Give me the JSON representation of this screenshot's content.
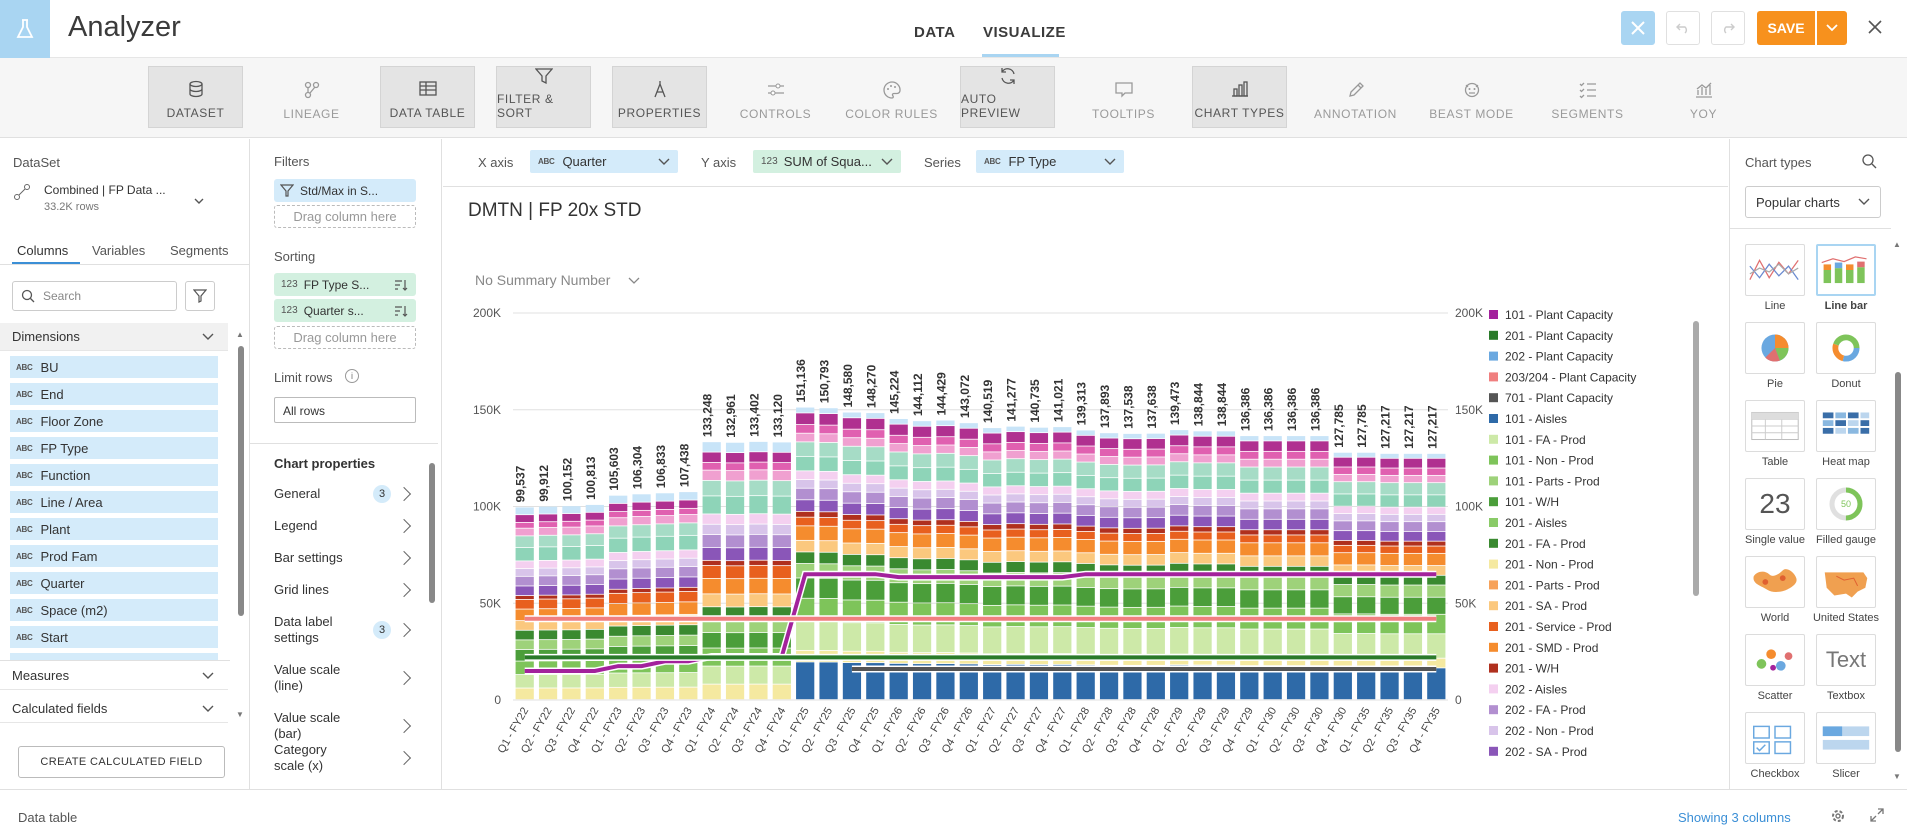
{
  "header": {
    "title": "Analyzer",
    "tabs": [
      "DATA",
      "VISUALIZE"
    ],
    "save_label": "SAVE"
  },
  "toolbar": [
    {
      "label": "DATASET",
      "icon": "database-icon",
      "active": true
    },
    {
      "label": "LINEAGE",
      "icon": "lineage-icon",
      "active": false
    },
    {
      "label": "DATA TABLE",
      "icon": "table-icon",
      "active": true
    },
    {
      "label": "FILTER & SORT",
      "icon": "filter-icon",
      "active": true
    },
    {
      "label": "PROPERTIES",
      "icon": "compass-icon",
      "active": true
    },
    {
      "label": "CONTROLS",
      "icon": "sliders-icon",
      "active": false
    },
    {
      "label": "COLOR RULES",
      "icon": "palette-icon",
      "active": false
    },
    {
      "label": "AUTO PREVIEW",
      "icon": "refresh-icon",
      "active": true
    },
    {
      "label": "TOOLTIPS",
      "icon": "tooltip-icon",
      "active": false
    },
    {
      "label": "CHART TYPES",
      "icon": "bar-chart-icon",
      "active": true
    },
    {
      "label": "ANNOTATION",
      "icon": "pencil-icon",
      "active": false
    },
    {
      "label": "BEAST MODE",
      "icon": "beast-icon",
      "active": false
    },
    {
      "label": "SEGMENTS",
      "icon": "segments-icon",
      "active": false
    },
    {
      "label": "YOY",
      "icon": "yoy-icon",
      "active": false
    }
  ],
  "dataset": {
    "heading": "DataSet",
    "name": "Combined | FP Data ...",
    "rows": "33.2K rows"
  },
  "left_tabs": [
    "Columns",
    "Variables",
    "Segments"
  ],
  "search_placeholder": "Search",
  "dimensions": {
    "label": "Dimensions",
    "items": [
      "BU",
      "End",
      "Floor Zone",
      "FP Type",
      "Function",
      "Line / Area",
      "Plant",
      "Prod Fam",
      "Quarter",
      "Space (m2)",
      "Start"
    ]
  },
  "measures_label": "Measures",
  "calculated_label": "Calculated fields",
  "create_calc_label": "CREATE CALCULATED FIELD",
  "filters": {
    "heading": "Filters",
    "items": [
      "Std/Max in S..."
    ],
    "drag": "Drag column here"
  },
  "sorting": {
    "heading": "Sorting",
    "items": [
      "FP Type S...",
      "Quarter s..."
    ],
    "drag": "Drag column here"
  },
  "limit": {
    "heading": "Limit rows",
    "value": "All rows"
  },
  "chart_props": {
    "heading": "Chart properties",
    "items": [
      {
        "label": "General",
        "badge": "3"
      },
      {
        "label": "Legend",
        "badge": ""
      },
      {
        "label": "Bar settings",
        "badge": ""
      },
      {
        "label": "Grid lines",
        "badge": ""
      },
      {
        "label": "Data label settings",
        "badge": "3"
      },
      {
        "label": "Value scale (line)",
        "badge": ""
      },
      {
        "label": "Value scale (bar)",
        "badge": ""
      },
      {
        "label": "Category scale (x)",
        "badge": ""
      }
    ]
  },
  "axes": {
    "x_label": "X axis",
    "x_value": "Quarter",
    "y_label": "Y axis",
    "y_value": "SUM of Squa...",
    "series_label": "Series",
    "series_value": "FP Type"
  },
  "chart_data": {
    "type": "bar",
    "title": "DMTN | FP 20x STD",
    "summary": "No Summary Number",
    "categories": [
      "Q1 - FY22",
      "Q2 - FY22",
      "Q3 - FY22",
      "Q4 - FY22",
      "Q1 - FY23",
      "Q2 - FY23",
      "Q3 - FY23",
      "Q4 - FY23",
      "Q1 - FY24",
      "Q2 - FY24",
      "Q3 - FY24",
      "Q4 - FY24",
      "Q1 - FY25",
      "Q2 - FY25",
      "Q3 - FY25",
      "Q4 - FY25",
      "Q1 - FY26",
      "Q2 - FY26",
      "Q3 - FY26",
      "Q4 - FY26",
      "Q1 - FY27",
      "Q2 - FY27",
      "Q3 - FY27",
      "Q4 - FY27",
      "Q1 - FY28",
      "Q2 - FY28",
      "Q3 - FY28",
      "Q4 - FY28",
      "Q1 - FY29",
      "Q2 - FY29",
      "Q3 - FY29",
      "Q4 - FY29",
      "Q1 - FY30",
      "Q2 - FY30",
      "Q3 - FY30",
      "Q4 - FY30",
      "Q1 - FY35",
      "Q2 - FY35",
      "Q3 - FY35",
      "Q4 - FY35"
    ],
    "totals": [
      99537,
      99912,
      100152,
      100813,
      105603,
      106304,
      106833,
      107438,
      133248,
      132961,
      133402,
      133120,
      151136,
      150793,
      148580,
      148270,
      145224,
      144112,
      144429,
      143072,
      140519,
      141277,
      140735,
      141021,
      139313,
      137893,
      137538,
      137638,
      139473,
      138844,
      138844,
      136386,
      136386,
      136386,
      136386,
      127785,
      127785,
      127217,
      127217,
      127217
    ],
    "ylim": [
      0,
      200000
    ],
    "yticks": [
      "0",
      "50K",
      "100K",
      "150K",
      "200K"
    ],
    "lines": [
      {
        "name": "101 - Plant Capacity",
        "color": "#a3229c",
        "values": [
          15000,
          15000,
          15000,
          15000,
          17500,
          17500,
          20000,
          20000,
          22500,
          22500,
          22500,
          22500,
          65000,
          65000,
          65000,
          65000,
          63500,
          63500,
          63500,
          63500,
          63500,
          63500,
          63500,
          63500,
          65000,
          65000,
          65000,
          65000,
          65000,
          65000,
          65000,
          65000,
          65000,
          65000,
          65000,
          65000,
          65000,
          65000,
          65000,
          65000
        ]
      },
      {
        "name": "201 - Plant Capacity",
        "color": "#2a7a2a",
        "values": [
          22000,
          22000,
          22000,
          22000,
          22000,
          22000,
          22000,
          22000,
          22000,
          22000,
          22000,
          22000,
          22000,
          22000,
          22000,
          22000,
          22000,
          22000,
          22000,
          22000,
          22000,
          22000,
          22000,
          22000,
          22000,
          22000,
          22000,
          22000,
          22000,
          22000,
          22000,
          22000,
          22000,
          22000,
          22000,
          22000,
          22000,
          22000,
          22000,
          22000
        ]
      },
      {
        "name": "203/204 - Plant Capacity",
        "color": "#f07f7f",
        "values": [
          42000,
          42000,
          42000,
          42000,
          42000,
          42000,
          42000,
          42000,
          42000,
          42000,
          42000,
          42000,
          42000,
          42000,
          42000,
          42000,
          42000,
          42000,
          42000,
          42000,
          42000,
          42000,
          42000,
          42000,
          42000,
          42000,
          42000,
          42000,
          42000,
          42000,
          42000,
          42000,
          42000,
          42000,
          42000,
          42000,
          42000,
          42000,
          42000,
          42000
        ]
      },
      {
        "name": "701 - Plant Capacity",
        "color": "#555555",
        "values": [
          0,
          0,
          0,
          0,
          0,
          0,
          0,
          0,
          0,
          0,
          0,
          0,
          0,
          0,
          16000,
          16000,
          16000,
          16000,
          16000,
          16000,
          16000,
          16000,
          16000,
          16000,
          16000,
          16000,
          16000,
          16000,
          16000,
          16000,
          16000,
          16000,
          16000,
          16000,
          16000,
          16000,
          16000,
          16000,
          16000,
          16000
        ]
      }
    ],
    "legend": [
      {
        "name": "101 - Plant Capacity",
        "color": "#a3229c"
      },
      {
        "name": "201 - Plant Capacity",
        "color": "#2a7a2a"
      },
      {
        "name": "202 - Plant Capacity",
        "color": "#6aa8e0"
      },
      {
        "name": "203/204 - Plant Capacity",
        "color": "#f07f7f"
      },
      {
        "name": "701 - Plant Capacity",
        "color": "#555555"
      },
      {
        "name": "101 - Aisles",
        "color": "#2e6aa8"
      },
      {
        "name": "101 - FA - Prod",
        "color": "#cde9a8"
      },
      {
        "name": "101 - Non - Prod",
        "color": "#7ec45a"
      },
      {
        "name": "101 - Parts - Prod",
        "color": "#9ed27a"
      },
      {
        "name": "101 - W/H",
        "color": "#4b9e3a"
      },
      {
        "name": "201 - Aisles",
        "color": "#8acb68"
      },
      {
        "name": "201 - FA - Prod",
        "color": "#3a8a30"
      },
      {
        "name": "201 - Non - Prod",
        "color": "#f5e9a0"
      },
      {
        "name": "201 - Parts - Prod",
        "color": "#f7a25a"
      },
      {
        "name": "201 - SA - Prod",
        "color": "#fbc87e"
      },
      {
        "name": "201 - Service - Prod",
        "color": "#e8601e"
      },
      {
        "name": "201 - SMD - Prod",
        "color": "#f58c2e"
      },
      {
        "name": "201 - W/H",
        "color": "#b0301e"
      },
      {
        "name": "202 - Aisles",
        "color": "#f4d0f0"
      },
      {
        "name": "202 - FA - Prod",
        "color": "#b28fd0"
      },
      {
        "name": "202 - Non - Prod",
        "color": "#d8c4ea"
      },
      {
        "name": "202 - SA - Prod",
        "color": "#8a56b8"
      }
    ]
  },
  "chart_types": {
    "heading": "Chart types",
    "dropdown": "Popular charts",
    "items": [
      "Line",
      "Line bar",
      "Pie",
      "Donut",
      "Table",
      "Heat map",
      "Single value",
      "Filled gauge",
      "World",
      "United States",
      "Scatter",
      "Textbox",
      "Checkbox",
      "Slicer"
    ],
    "single_value_text": "23",
    "gauge_text": "50",
    "textbox_text": "Text"
  },
  "bottom": {
    "label": "Data table",
    "showing": "Showing 3 columns"
  }
}
